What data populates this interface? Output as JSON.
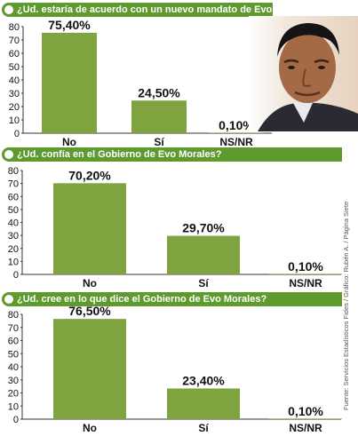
{
  "source_note": "Fuente: Servicios Estadísticos Fides / Gráfico: Rubén A. / Página Siete",
  "colors": {
    "bar": "#7ea33f",
    "header": "#5f9a2f"
  },
  "chart_data": [
    {
      "type": "bar",
      "title": "¿Ud. estaría de acuerdo con un nuevo mandato de Evo Morales?",
      "categories": [
        "No",
        "Sí",
        "NS/NR"
      ],
      "values": [
        75.4,
        24.5,
        0.1
      ],
      "labels": [
        "75,40%",
        "24,50%",
        "0,10%"
      ],
      "ylim": [
        0,
        80
      ],
      "yticks": [
        "0",
        "10",
        "20",
        "30",
        "40",
        "50",
        "60",
        "70",
        "80"
      ],
      "grid": false
    },
    {
      "type": "bar",
      "title": "¿Ud. confía en el Gobierno de Evo Morales?",
      "categories": [
        "No",
        "Sí",
        "NS/NR"
      ],
      "values": [
        70.2,
        29.7,
        0.1
      ],
      "labels": [
        "70,20%",
        "29,70%",
        "0,10%"
      ],
      "ylim": [
        0,
        80
      ],
      "yticks": [
        "0",
        "10",
        "20",
        "30",
        "40",
        "50",
        "60",
        "70",
        "80"
      ],
      "grid": false
    },
    {
      "type": "bar",
      "title": "¿Ud. cree en lo que dice el Gobierno de Evo Morales?",
      "categories": [
        "No",
        "Sí",
        "NS/NR"
      ],
      "values": [
        76.5,
        23.4,
        0.1
      ],
      "labels": [
        "76,50%",
        "23,40%",
        "0,10%"
      ],
      "ylim": [
        0,
        80
      ],
      "yticks": [
        "0",
        "10",
        "20",
        "30",
        "40",
        "50",
        "60",
        "70",
        "80"
      ],
      "grid": false
    }
  ]
}
